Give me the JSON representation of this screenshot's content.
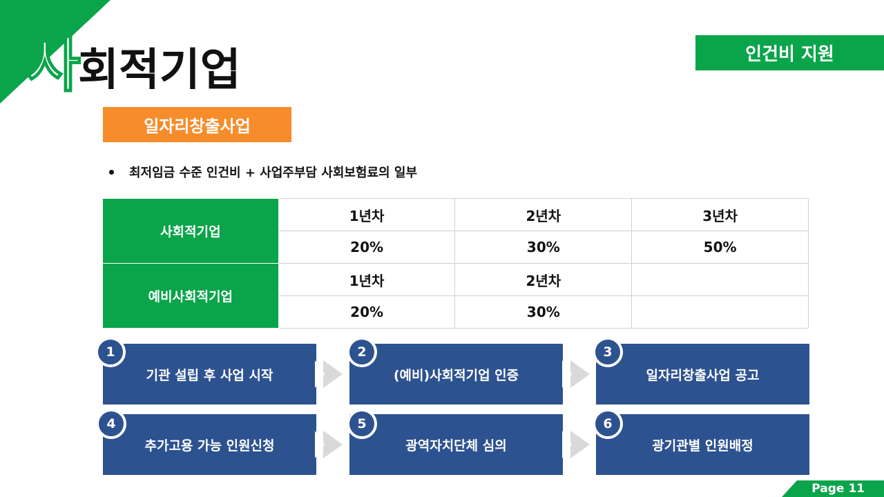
{
  "header": {
    "title_first": "사",
    "title_rest": "회적기업",
    "badge": "인건비 지원"
  },
  "section": {
    "label": "일자리창출사업"
  },
  "bullet": {
    "text": "최저임금 수준 인건비 + 사업주부담 사회보험료의 일부"
  },
  "table": {
    "social": {
      "label": "사회적기업",
      "years": [
        "1년차",
        "2년차",
        "3년차"
      ],
      "rates": [
        "20%",
        "30%",
        "50%"
      ]
    },
    "preliminary": {
      "label": "예비사회적기업",
      "years": [
        "1년차",
        "2년차",
        ""
      ],
      "rates": [
        "20%",
        "30%",
        ""
      ]
    }
  },
  "steps": [
    {
      "num": "1",
      "label": "기관 설립 후 사업 시작"
    },
    {
      "num": "2",
      "label": "(예비)사회적기업 인증"
    },
    {
      "num": "3",
      "label": "일자리창출사업 공고"
    },
    {
      "num": "4",
      "label": "추가고용 가능 인원신청"
    },
    {
      "num": "5",
      "label": "광역자치단체 심의"
    },
    {
      "num": "6",
      "label": "광기관별 인원배정"
    }
  ],
  "footer": {
    "page_label": "Page 11"
  },
  "colors": {
    "green": "#0aa54a",
    "orange": "#f68c2a",
    "navy": "#2d5290",
    "arrow_gray": "#d9d9d9"
  }
}
